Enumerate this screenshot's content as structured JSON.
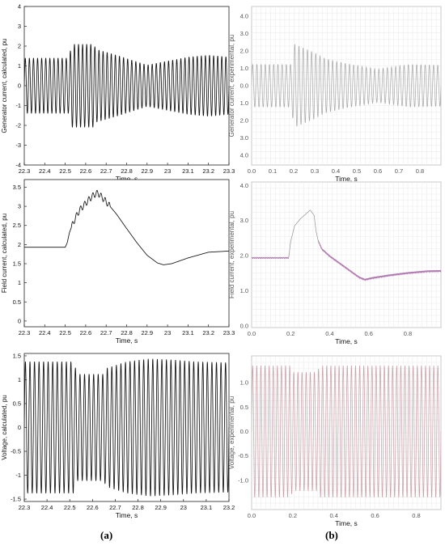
{
  "captions": {
    "left": "(a)",
    "right": "(b)"
  },
  "chart_data": [
    {
      "id": "gen-calc",
      "type": "line",
      "style": "matlab",
      "xlabel": "Time, s",
      "ylabel": "Generator current, calculated, pu",
      "xlim": [
        22.3,
        23.3
      ],
      "ylim": [
        -4,
        4
      ],
      "xticks": [
        "22.3",
        "22.4",
        "22.5",
        "22.6",
        "22.7",
        "22.8",
        "22.9",
        "23",
        "23.1",
        "23.2",
        "23.3"
      ],
      "yticks": [
        "-4",
        "-3",
        "-2",
        "-1",
        "0",
        "1",
        "2",
        "3",
        "4"
      ],
      "series": [
        {
          "kind": "oscillation",
          "x0": 22.3,
          "x1": 23.3,
          "freq_hz": 50,
          "color": "#111111",
          "envelope_x": [
            22.3,
            22.52,
            22.53,
            22.64,
            22.65,
            22.75,
            22.9,
            23.1,
            23.2,
            23.3
          ],
          "envelope_y": [
            1.4,
            1.4,
            2.1,
            2.1,
            1.85,
            1.55,
            1.05,
            1.45,
            1.55,
            1.45
          ]
        }
      ]
    },
    {
      "id": "gen-exp",
      "type": "line",
      "style": "scope",
      "xlabel": "Time, s",
      "ylabel": "Generator current, experimental, pu",
      "xlim": [
        0,
        0.9
      ],
      "ylim": [
        -4.8,
        4.8
      ],
      "xticks": [
        "0.0",
        "0.1",
        "0.2",
        "0.3",
        "0.4",
        "0.5",
        "0.6",
        "0.7",
        "0.8"
      ],
      "yticks": [
        "4.0",
        "3.0",
        "2.0",
        "1.0",
        "0.0",
        "1.0",
        "2.0",
        "3.0",
        "4.0"
      ],
      "series": [
        {
          "kind": "oscillation",
          "x0": 0,
          "x1": 0.9,
          "freq_hz": 50,
          "color": "#aaaaaa",
          "envelope_x": [
            0,
            0.19,
            0.2,
            0.3,
            0.35,
            0.45,
            0.6,
            0.75,
            0.9
          ],
          "envelope_y": [
            1.3,
            1.3,
            2.55,
            2.0,
            1.65,
            1.35,
            1.0,
            1.3,
            1.25
          ]
        }
      ]
    },
    {
      "id": "field-calc",
      "type": "line",
      "style": "matlab",
      "xlabel": "Time, s",
      "ylabel": "Field current, calculated, pu",
      "xlim": [
        22.3,
        23.3
      ],
      "ylim": [
        -0.15,
        3.7
      ],
      "xticks": [
        "22.3",
        "22.4",
        "22.5",
        "22.6",
        "22.7",
        "22.8",
        "22.9",
        "23",
        "23.1",
        "23.2",
        "23.3"
      ],
      "yticks": [
        "0",
        "0.5",
        "1",
        "1.5",
        "2",
        "2.5",
        "3",
        "3.5"
      ],
      "series": [
        {
          "kind": "curve",
          "color": "#111111",
          "x": [
            22.3,
            22.5,
            22.51,
            22.52,
            22.53,
            22.55,
            22.57,
            22.6,
            22.62,
            22.64,
            22.66,
            22.7,
            22.75,
            22.8,
            22.85,
            22.9,
            22.95,
            22.98,
            23.02,
            23.1,
            23.2,
            23.3
          ],
          "y": [
            1.93,
            1.93,
            2.05,
            2.3,
            2.45,
            2.7,
            2.9,
            3.08,
            3.2,
            3.3,
            3.35,
            3.12,
            2.8,
            2.42,
            2.05,
            1.72,
            1.52,
            1.47,
            1.5,
            1.65,
            1.8,
            1.83
          ],
          "ripple": {
            "x0": 22.53,
            "x1": 22.72,
            "freq_hz": 50,
            "amp": 0.08
          }
        }
      ]
    },
    {
      "id": "field-exp",
      "type": "line",
      "style": "scope",
      "xlabel": "Time, s",
      "ylabel": "Field current, experimental, pu",
      "xlim": [
        0,
        0.97
      ],
      "ylim": [
        -0.05,
        4.1
      ],
      "xticks": [
        "0.0",
        "0.2",
        "0.4",
        "0.6",
        "0.8"
      ],
      "yticks": [
        "0.0",
        "1.0",
        "2.0",
        "3.0",
        "4.0"
      ],
      "series": [
        {
          "kind": "curve",
          "color": "#999999",
          "x": [
            0,
            0.19,
            0.2,
            0.22,
            0.25,
            0.28,
            0.3,
            0.32,
            0.33,
            0.34,
            0.36,
            0.4,
            0.45,
            0.5,
            0.55,
            0.58,
            0.62,
            0.7,
            0.8,
            0.9,
            0.97
          ],
          "y": [
            1.95,
            1.95,
            2.4,
            2.85,
            3.05,
            3.2,
            3.3,
            3.15,
            2.7,
            2.45,
            2.2,
            2.0,
            1.8,
            1.6,
            1.4,
            1.33,
            1.38,
            1.45,
            1.52,
            1.57,
            1.58
          ],
          "overlay": {
            "from": 0.34,
            "color": "#b06ab0",
            "x": [
              0,
              0.19
            ],
            "y": [
              1.93,
              1.93
            ]
          }
        }
      ]
    },
    {
      "id": "volt-calc",
      "type": "line",
      "style": "matlab",
      "xlabel": "Time, s",
      "ylabel": "Voltage, calculated, pu",
      "xlim": [
        22.3,
        23.2
      ],
      "ylim": [
        -1.55,
        1.55
      ],
      "xticks": [
        "22.3",
        "22.4",
        "22.5",
        "22.6",
        "22.7",
        "22.8",
        "22.9",
        "23",
        "23.1",
        "23.2"
      ],
      "yticks": [
        "-1.5",
        "-1",
        "-0.5",
        "0",
        "0.5",
        "1",
        "1.5"
      ],
      "series": [
        {
          "kind": "oscillation",
          "x0": 22.3,
          "x1": 23.2,
          "freq_hz": 50,
          "color": "#111111",
          "envelope_x": [
            22.3,
            22.52,
            22.53,
            22.65,
            22.66,
            22.75,
            22.85,
            22.95,
            23.05,
            23.2
          ],
          "envelope_y": [
            1.38,
            1.38,
            1.12,
            1.12,
            1.24,
            1.38,
            1.44,
            1.42,
            1.38,
            1.36
          ]
        }
      ]
    },
    {
      "id": "volt-exp",
      "type": "line",
      "style": "scope",
      "xlabel": "Time, s",
      "ylabel": "Voltage, experimental, pu",
      "xlim": [
        0,
        0.92
      ],
      "ylim": [
        -1.6,
        1.55
      ],
      "xticks": [
        "0.0",
        "0.2",
        "0.4",
        "0.6",
        "0.8"
      ],
      "yticks": [
        "-1.0",
        "-0.5",
        "0.0",
        "0.5",
        "1.0"
      ],
      "series": [
        {
          "kind": "oscillation",
          "x0": 0,
          "x1": 0.92,
          "freq_hz": 50,
          "color": "#c9a0a8",
          "envelope_x": [
            0,
            0.19,
            0.2,
            0.32,
            0.33,
            0.92
          ],
          "envelope_y": [
            1.35,
            1.35,
            1.22,
            1.22,
            1.35,
            1.35
          ]
        }
      ]
    }
  ]
}
